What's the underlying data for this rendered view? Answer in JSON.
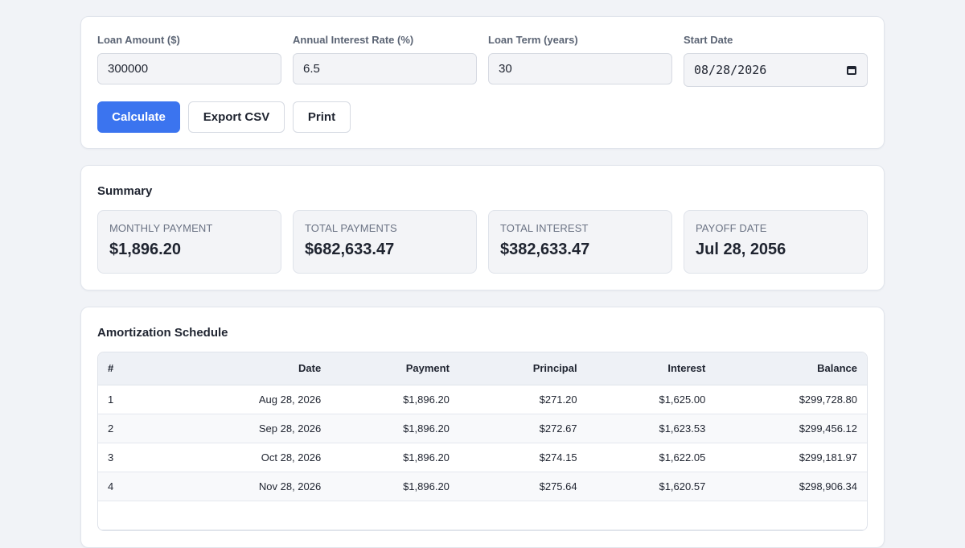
{
  "form": {
    "loan_amount_label": "Loan Amount ($)",
    "loan_amount_value": "300000",
    "interest_rate_label": "Annual Interest Rate (%)",
    "interest_rate_value": "6.5",
    "loan_term_label": "Loan Term (years)",
    "loan_term_value": "30",
    "start_date_label": "Start Date",
    "start_date_value": "08/28/2026",
    "calculate_label": "Calculate",
    "export_label": "Export CSV",
    "print_label": "Print"
  },
  "summary": {
    "title": "Summary",
    "monthly_payment_label": "MONTHLY PAYMENT",
    "monthly_payment_value": "$1,896.20",
    "total_payments_label": "TOTAL PAYMENTS",
    "total_payments_value": "$682,633.47",
    "total_interest_label": "TOTAL INTEREST",
    "total_interest_value": "$382,633.47",
    "payoff_date_label": "PAYOFF DATE",
    "payoff_date_value": "Jul 28, 2056"
  },
  "schedule": {
    "title": "Amortization Schedule",
    "columns": [
      "#",
      "Date",
      "Payment",
      "Principal",
      "Interest",
      "Balance"
    ],
    "rows": [
      [
        "1",
        "Aug 28, 2026",
        "$1,896.20",
        "$271.20",
        "$1,625.00",
        "$299,728.80"
      ],
      [
        "2",
        "Sep 28, 2026",
        "$1,896.20",
        "$272.67",
        "$1,623.53",
        "$299,456.12"
      ],
      [
        "3",
        "Oct 28, 2026",
        "$1,896.20",
        "$274.15",
        "$1,622.05",
        "$299,181.97"
      ],
      [
        "4",
        "Nov 28, 2026",
        "$1,896.20",
        "$275.64",
        "$1,620.57",
        "$298,906.34"
      ],
      [
        "",
        "",
        "",
        "",
        "",
        ""
      ]
    ]
  },
  "icons": {
    "start_date_picker": "calendar-icon"
  },
  "colors": {
    "accent": "#3b74ef",
    "background": "#f1f3f7"
  }
}
